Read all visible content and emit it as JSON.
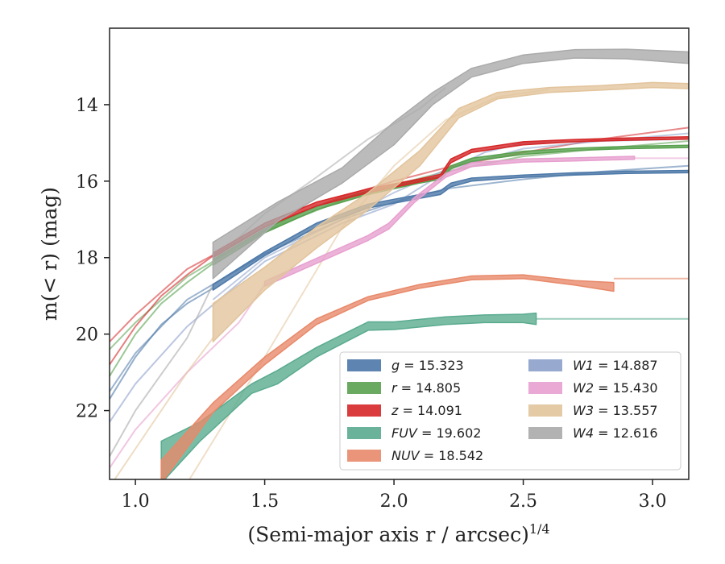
{
  "chart_data": {
    "type": "line",
    "xlabel": "(Semi-major axis r / arcsec)",
    "xlabel_sup": "1/4",
    "ylabel": "m(< r) (mag)",
    "xlim": [
      0.9,
      3.14
    ],
    "ylim": [
      23.8,
      12.0
    ],
    "y_inverted": true,
    "xticks": [
      1.0,
      1.5,
      2.0,
      2.5,
      3.0
    ],
    "xtick_labels": [
      "1.0",
      "1.5",
      "2.0",
      "2.5",
      "3.0"
    ],
    "yticks": [
      14,
      16,
      18,
      20,
      22
    ],
    "ytick_labels": [
      "14",
      "16",
      "18",
      "20",
      "22"
    ],
    "grid": false,
    "legend_position": "lower-right",
    "legend_columns": 2,
    "series": [
      {
        "name": "g = 15.323",
        "sym": "g",
        "val": "15.323",
        "color": "#4c78a8",
        "band": [
          [
            1.3,
            18.85,
            18.7
          ],
          [
            1.5,
            17.95,
            17.85
          ],
          [
            1.7,
            17.2,
            17.1
          ],
          [
            1.9,
            16.7,
            16.6
          ],
          [
            2.1,
            16.45,
            16.35
          ],
          [
            2.18,
            16.35,
            16.25
          ],
          [
            2.22,
            16.15,
            16.05
          ],
          [
            2.3,
            16.0,
            15.92
          ],
          [
            2.5,
            15.9,
            15.84
          ],
          [
            2.7,
            15.84,
            15.78
          ],
          [
            2.9,
            15.8,
            15.74
          ],
          [
            3.14,
            15.78,
            15.72
          ]
        ],
        "line": [
          [
            0.9,
            21.7
          ],
          [
            1.0,
            20.6
          ],
          [
            1.1,
            19.75
          ],
          [
            1.2,
            19.2
          ],
          [
            1.3,
            18.8
          ]
        ],
        "model": [
          [
            0.9,
            21.5
          ],
          [
            1.0,
            20.5
          ],
          [
            1.2,
            19.1
          ],
          [
            1.5,
            17.9
          ],
          [
            1.8,
            17.0
          ],
          [
            2.0,
            16.55
          ],
          [
            2.2,
            16.2
          ],
          [
            2.5,
            15.95
          ],
          [
            2.8,
            15.75
          ],
          [
            3.14,
            15.6
          ]
        ]
      },
      {
        "name": "r = 14.805",
        "sym": "r",
        "val": "14.805",
        "color": "#59a14f",
        "band": [
          [
            1.3,
            18.2,
            18.05
          ],
          [
            1.5,
            17.35,
            17.25
          ],
          [
            1.7,
            16.75,
            16.65
          ],
          [
            1.9,
            16.35,
            16.25
          ],
          [
            2.1,
            16.05,
            15.97
          ],
          [
            2.18,
            15.95,
            15.88
          ],
          [
            2.22,
            15.68,
            15.6
          ],
          [
            2.3,
            15.48,
            15.4
          ],
          [
            2.5,
            15.3,
            15.22
          ],
          [
            2.7,
            15.2,
            15.14
          ],
          [
            2.9,
            15.15,
            15.09
          ],
          [
            3.14,
            15.12,
            15.06
          ]
        ],
        "line": [
          [
            0.9,
            21.1
          ],
          [
            1.0,
            20.0
          ],
          [
            1.1,
            19.2
          ],
          [
            1.2,
            18.65
          ],
          [
            1.3,
            18.15
          ]
        ],
        "model": [
          [
            0.9,
            20.4
          ],
          [
            1.0,
            19.7
          ],
          [
            1.2,
            18.5
          ],
          [
            1.5,
            17.3
          ],
          [
            1.8,
            16.5
          ],
          [
            2.0,
            16.1
          ],
          [
            2.2,
            15.75
          ],
          [
            2.5,
            15.35
          ],
          [
            2.8,
            15.15
          ],
          [
            3.14,
            14.95
          ]
        ]
      },
      {
        "name": "z = 14.091",
        "sym": "z",
        "val": "14.091",
        "color": "#d62728",
        "band": [
          [
            1.3,
            18.0,
            17.88
          ],
          [
            1.5,
            17.2,
            17.1
          ],
          [
            1.7,
            16.65,
            16.55
          ],
          [
            1.9,
            16.3,
            16.2
          ],
          [
            2.1,
            16.02,
            15.94
          ],
          [
            2.18,
            15.9,
            15.82
          ],
          [
            2.22,
            15.52,
            15.42
          ],
          [
            2.3,
            15.25,
            15.17
          ],
          [
            2.5,
            15.05,
            14.97
          ],
          [
            2.7,
            14.97,
            14.91
          ],
          [
            2.9,
            14.93,
            14.87
          ],
          [
            3.14,
            14.9,
            14.84
          ]
        ],
        "line": [
          [
            0.9,
            20.8
          ],
          [
            1.0,
            19.8
          ],
          [
            1.1,
            19.0
          ],
          [
            1.2,
            18.45
          ],
          [
            1.3,
            17.95
          ]
        ],
        "model": [
          [
            0.9,
            20.2
          ],
          [
            1.0,
            19.5
          ],
          [
            1.2,
            18.3
          ],
          [
            1.5,
            17.2
          ],
          [
            1.8,
            16.4
          ],
          [
            2.0,
            16.0
          ],
          [
            2.2,
            15.65
          ],
          [
            2.5,
            15.25
          ],
          [
            2.8,
            14.9
          ],
          [
            3.14,
            14.6
          ]
        ]
      },
      {
        "name": "FUV = 19.602",
        "sym": "FUV",
        "val": "19.602",
        "color": "#5aab8f",
        "band": [
          [
            1.1,
            23.9,
            22.8
          ],
          [
            1.25,
            22.8,
            22.3
          ],
          [
            1.45,
            21.55,
            21.3
          ],
          [
            1.55,
            21.3,
            20.95
          ],
          [
            1.7,
            20.6,
            20.35
          ],
          [
            1.9,
            19.9,
            19.68
          ],
          [
            2.0,
            19.88,
            19.68
          ],
          [
            2.2,
            19.75,
            19.55
          ],
          [
            2.35,
            19.7,
            19.5
          ],
          [
            2.5,
            19.7,
            19.48
          ],
          [
            2.55,
            19.75,
            19.45
          ]
        ],
        "line": [
          [
            2.55,
            19.6
          ],
          [
            3.14,
            19.6
          ]
        ],
        "model": []
      },
      {
        "name": "NUV = 18.542",
        "sym": "NUV",
        "val": "18.542",
        "color": "#e8896a",
        "band": [
          [
            1.1,
            23.9,
            23.3
          ],
          [
            1.3,
            22.05,
            21.8
          ],
          [
            1.5,
            20.8,
            20.6
          ],
          [
            1.7,
            19.75,
            19.6
          ],
          [
            1.9,
            19.12,
            19.02
          ],
          [
            2.1,
            18.8,
            18.7
          ],
          [
            2.3,
            18.58,
            18.48
          ],
          [
            2.5,
            18.55,
            18.45
          ],
          [
            2.7,
            18.72,
            18.6
          ],
          [
            2.85,
            18.88,
            18.65
          ]
        ],
        "line": [
          [
            2.85,
            18.55
          ],
          [
            3.14,
            18.55
          ]
        ],
        "model": []
      },
      {
        "name": "W1 = 14.887",
        "sym": "W1",
        "val": "14.887",
        "color": "#8da0cb",
        "band": [],
        "line": [
          [
            0.9,
            22.3
          ],
          [
            1.0,
            21.3
          ],
          [
            1.2,
            19.8
          ],
          [
            1.5,
            18.1
          ],
          [
            1.8,
            17.1
          ],
          [
            2.0,
            16.6
          ],
          [
            2.2,
            15.75
          ],
          [
            2.35,
            15.25
          ],
          [
            2.5,
            15.0
          ],
          [
            2.8,
            14.95
          ],
          [
            3.14,
            14.9
          ]
        ],
        "model": [
          [
            1.3,
            19.1
          ],
          [
            1.5,
            18.0
          ],
          [
            1.8,
            17.0
          ],
          [
            2.0,
            16.3
          ],
          [
            2.2,
            15.7
          ],
          [
            2.5,
            15.15
          ],
          [
            2.8,
            14.95
          ],
          [
            3.14,
            14.75
          ]
        ]
      },
      {
        "name": "W2 = 15.430",
        "sym": "W2",
        "val": "15.430",
        "color": "#e7a0cf",
        "band": [
          [
            1.5,
            18.75,
            18.62
          ],
          [
            1.7,
            18.15,
            18.02
          ],
          [
            1.9,
            17.55,
            17.42
          ],
          [
            1.98,
            17.25,
            17.1
          ],
          [
            2.08,
            16.55,
            16.42
          ],
          [
            2.2,
            15.9,
            15.8
          ],
          [
            2.3,
            15.62,
            15.52
          ],
          [
            2.5,
            15.5,
            15.42
          ],
          [
            2.7,
            15.47,
            15.39
          ],
          [
            2.93,
            15.43,
            15.35
          ]
        ],
        "line": [
          [
            0.9,
            23.5
          ],
          [
            1.0,
            22.5
          ],
          [
            1.2,
            21.0
          ],
          [
            1.4,
            19.7
          ],
          [
            1.5,
            18.7
          ]
        ],
        "model": [
          [
            2.93,
            15.4
          ],
          [
            3.14,
            15.4
          ]
        ]
      },
      {
        "name": "W3 = 13.557",
        "sym": "W3",
        "val": "13.557",
        "color": "#e2c49c",
        "band": [
          [
            1.3,
            20.2,
            19.2
          ],
          [
            1.5,
            18.85,
            18.25
          ],
          [
            1.7,
            17.75,
            17.2
          ],
          [
            1.9,
            16.75,
            16.3
          ],
          [
            2.1,
            15.6,
            15.2
          ],
          [
            2.25,
            14.35,
            14.1
          ],
          [
            2.4,
            13.85,
            13.68
          ],
          [
            2.6,
            13.68,
            13.55
          ],
          [
            2.8,
            13.62,
            13.5
          ],
          [
            3.0,
            13.55,
            13.42
          ],
          [
            3.14,
            13.58,
            13.45
          ]
        ],
        "line": [
          [
            0.9,
            24.0
          ],
          [
            1.0,
            23.0
          ],
          [
            1.2,
            21.0
          ],
          [
            1.3,
            20.1
          ]
        ],
        "model": [
          [
            1.2,
            23.9
          ],
          [
            1.5,
            20.6
          ],
          [
            1.8,
            17.2
          ],
          [
            2.0,
            15.6
          ],
          [
            2.2,
            14.4
          ],
          [
            2.4,
            13.8
          ],
          [
            2.6,
            13.6
          ]
        ]
      },
      {
        "name": "W4 = 12.616",
        "sym": "W4",
        "val": "12.616",
        "color": "#aaaaaa",
        "band": [
          [
            1.3,
            18.55,
            17.6
          ],
          [
            1.55,
            17.05,
            16.55
          ],
          [
            1.8,
            16.05,
            15.65
          ],
          [
            2.0,
            15.05,
            14.45
          ],
          [
            2.15,
            14.0,
            13.68
          ],
          [
            2.3,
            13.28,
            13.05
          ],
          [
            2.5,
            12.92,
            12.7
          ],
          [
            2.7,
            12.78,
            12.56
          ],
          [
            2.9,
            12.8,
            12.55
          ],
          [
            3.14,
            12.92,
            12.62
          ]
        ],
        "line": [
          [
            0.9,
            23.2
          ],
          [
            1.0,
            22.0
          ],
          [
            1.2,
            20.1
          ],
          [
            1.3,
            18.7
          ]
        ],
        "model": [
          [
            1.3,
            18.1
          ],
          [
            1.5,
            16.85
          ],
          [
            1.7,
            15.9
          ],
          [
            1.9,
            14.9
          ],
          [
            2.1,
            14.1
          ],
          [
            2.2,
            13.55
          ]
        ]
      }
    ]
  }
}
